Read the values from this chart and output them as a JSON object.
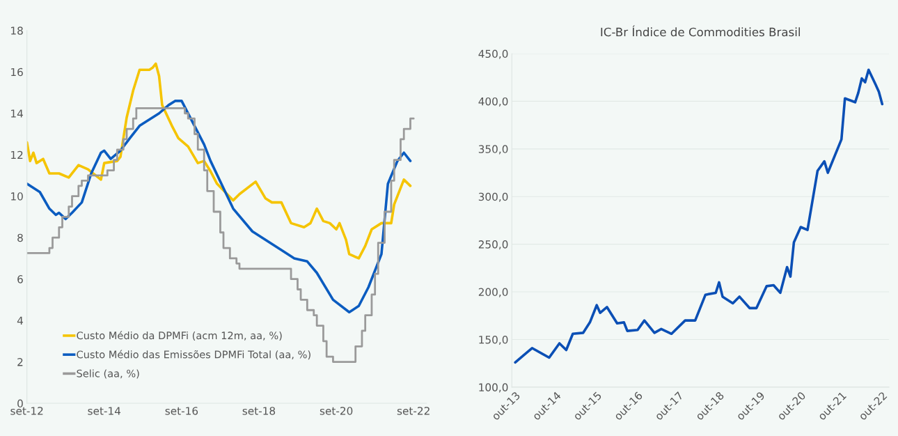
{
  "chart_data": [
    {
      "type": "line",
      "legend": "bottom left",
      "grid": false,
      "ylim": [
        0,
        18
      ],
      "yticks": [
        0,
        2,
        4,
        6,
        8,
        10,
        12,
        14,
        16,
        18
      ],
      "xlim": [
        "2012-09",
        "2023-01"
      ],
      "xticks": [
        {
          "value": "2012-09",
          "label": "set-12"
        },
        {
          "value": "2014-09",
          "label": "set-14"
        },
        {
          "value": "2016-09",
          "label": "set-16"
        },
        {
          "value": "2018-09",
          "label": "set-18"
        },
        {
          "value": "2020-09",
          "label": "set-20"
        },
        {
          "value": "2022-09",
          "label": "set-22"
        }
      ],
      "series": [
        {
          "name": "Custo Médio da DPMFi (acm 12m, aa, %)",
          "color": "#f5c400",
          "x": [
            "2012-09",
            "2012-10",
            "2012-11",
            "2012-12",
            "2013-02",
            "2013-04",
            "2013-07",
            "2013-10",
            "2014-01",
            "2014-04",
            "2014-08",
            "2014-09",
            "2015-01",
            "2015-02",
            "2015-04",
            "2015-06",
            "2015-08",
            "2015-11",
            "2015-12",
            "2016-01",
            "2016-02",
            "2016-03",
            "2016-06",
            "2016-08",
            "2016-11",
            "2017-02",
            "2017-04",
            "2017-06",
            "2017-08",
            "2018-01",
            "2018-03",
            "2018-08",
            "2018-11",
            "2019-01",
            "2019-04",
            "2019-07",
            "2019-11",
            "2020-01",
            "2020-03",
            "2020-05",
            "2020-07",
            "2020-09",
            "2020-10",
            "2020-12",
            "2021-01",
            "2021-04",
            "2021-06",
            "2021-08",
            "2021-11",
            "2022-02",
            "2022-03",
            "2022-06",
            "2022-08"
          ],
          "values": [
            12.6,
            11.7,
            12.1,
            11.6,
            11.8,
            11.1,
            11.1,
            10.9,
            11.5,
            11.3,
            10.8,
            11.6,
            11.7,
            11.9,
            13.8,
            15.1,
            16.1,
            16.1,
            16.2,
            16.4,
            15.8,
            14.4,
            13.4,
            12.8,
            12.4,
            11.6,
            11.7,
            11.2,
            10.6,
            9.8,
            10.1,
            10.7,
            9.9,
            9.7,
            9.7,
            8.7,
            8.5,
            8.7,
            9.4,
            8.8,
            8.7,
            8.4,
            8.7,
            7.9,
            7.2,
            7.0,
            7.6,
            8.4,
            8.7,
            8.7,
            9.6,
            10.8,
            10.5
          ]
        },
        {
          "name": "Custo Médio das Emissões DPMFi Total (aa, %)",
          "color": "#0b5cc0",
          "x": [
            "2012-09",
            "2013-01",
            "2013-04",
            "2013-06",
            "2013-07",
            "2013-09",
            "2013-11",
            "2014-02",
            "2014-05",
            "2014-08",
            "2014-09",
            "2014-11",
            "2015-02",
            "2015-05",
            "2015-08",
            "2016-02",
            "2016-05",
            "2016-07",
            "2016-09",
            "2017-04",
            "2017-06",
            "2018-01",
            "2018-07",
            "2019-04",
            "2019-08",
            "2019-12",
            "2020-03",
            "2020-08",
            "2021-01",
            "2021-04",
            "2021-07",
            "2021-11",
            "2022-01",
            "2022-04",
            "2022-06",
            "2022-08"
          ],
          "values": [
            10.6,
            10.2,
            9.4,
            9.1,
            9.2,
            8.9,
            9.2,
            9.7,
            11.1,
            12.1,
            12.2,
            11.8,
            12.2,
            12.8,
            13.4,
            14.0,
            14.4,
            14.6,
            14.6,
            12.5,
            11.7,
            9.4,
            8.3,
            7.4,
            7.0,
            6.85,
            6.3,
            5.0,
            4.4,
            4.7,
            5.6,
            7.2,
            10.6,
            11.7,
            12.1,
            11.7
          ]
        },
        {
          "name": "Selic (aa, %)",
          "color": "#9a9a9a",
          "type": "step",
          "x": [
            "2012-09",
            "2013-04",
            "2013-05",
            "2013-07",
            "2013-08",
            "2013-10",
            "2013-11",
            "2014-01",
            "2014-02",
            "2014-04",
            "2014-10",
            "2014-12",
            "2015-01",
            "2015-03",
            "2015-04",
            "2015-06",
            "2015-07",
            "2016-10",
            "2016-11",
            "2017-01",
            "2017-02",
            "2017-04",
            "2017-05",
            "2017-07",
            "2017-09",
            "2017-10",
            "2017-12",
            "2018-02",
            "2018-03",
            "2019-07",
            "2019-09",
            "2019-10",
            "2019-12",
            "2020-02",
            "2020-03",
            "2020-05",
            "2020-06",
            "2020-08",
            "2021-03",
            "2021-05",
            "2021-06",
            "2021-08",
            "2021-09",
            "2021-10",
            "2021-12",
            "2022-02",
            "2022-03",
            "2022-05",
            "2022-06",
            "2022-08",
            "2022-09"
          ],
          "values": [
            7.25,
            7.5,
            8.0,
            8.5,
            9.0,
            9.5,
            10.0,
            10.5,
            10.75,
            11.0,
            11.25,
            11.75,
            12.25,
            12.75,
            13.25,
            13.75,
            14.25,
            14.0,
            13.75,
            13.0,
            12.25,
            11.25,
            10.25,
            9.25,
            8.25,
            7.5,
            7.0,
            6.75,
            6.5,
            6.0,
            5.5,
            5.0,
            4.5,
            4.25,
            3.75,
            3.0,
            2.25,
            2.0,
            2.75,
            3.5,
            4.25,
            5.25,
            6.25,
            7.75,
            9.25,
            10.75,
            11.75,
            12.75,
            13.25,
            13.75,
            13.75
          ]
        }
      ]
    },
    {
      "type": "line",
      "title": "IC-Br Índice de Commodities Brasil",
      "grid": "y",
      "ylim": [
        100,
        450
      ],
      "yticks": [
        {
          "value": 100,
          "label": "100,0"
        },
        {
          "value": 150,
          "label": "150,0"
        },
        {
          "value": 200,
          "label": "200,0"
        },
        {
          "value": 250,
          "label": "250,0"
        },
        {
          "value": 300,
          "label": "300,0"
        },
        {
          "value": 350,
          "label": "350,0"
        },
        {
          "value": 400,
          "label": "400,0"
        },
        {
          "value": 450,
          "label": "450,0"
        }
      ],
      "xlim": [
        "2013-09",
        "2022-12"
      ],
      "xticks": [
        {
          "value": "2013-10",
          "label": "out-13"
        },
        {
          "value": "2014-10",
          "label": "out-14"
        },
        {
          "value": "2015-10",
          "label": "out-15"
        },
        {
          "value": "2016-10",
          "label": "out-16"
        },
        {
          "value": "2017-10",
          "label": "out-17"
        },
        {
          "value": "2018-10",
          "label": "out-18"
        },
        {
          "value": "2019-10",
          "label": "out-19"
        },
        {
          "value": "2020-10",
          "label": "out-20"
        },
        {
          "value": "2021-10",
          "label": "out-21"
        },
        {
          "value": "2022-10",
          "label": "out-22"
        }
      ],
      "series": [
        {
          "color": "#0b4fb5",
          "x": [
            "2013-10",
            "2014-03",
            "2014-08",
            "2014-11",
            "2015-01",
            "2015-03",
            "2015-06",
            "2015-08",
            "2015-10",
            "2015-11",
            "2016-01",
            "2016-04",
            "2016-06",
            "2016-07",
            "2016-10",
            "2016-12",
            "2017-03",
            "2017-05",
            "2017-08",
            "2017-12",
            "2018-03",
            "2018-06",
            "2018-09",
            "2018-10",
            "2018-11",
            "2019-02",
            "2019-04",
            "2019-07",
            "2019-09",
            "2019-12",
            "2020-02",
            "2020-04",
            "2020-06",
            "2020-07",
            "2020-08",
            "2020-10",
            "2020-12",
            "2021-03",
            "2021-05",
            "2021-06",
            "2021-10",
            "2021-11",
            "2022-02",
            "2022-03",
            "2022-04",
            "2022-05",
            "2022-06",
            "2022-08",
            "2022-09",
            "2022-10"
          ],
          "values": [
            126,
            141,
            131,
            146,
            139,
            156,
            157,
            168,
            186,
            178,
            184,
            167,
            168,
            159,
            160,
            170,
            157,
            161,
            156,
            170,
            170,
            197,
            199,
            210,
            195,
            188,
            195,
            183,
            183,
            206,
            207,
            199,
            226,
            216,
            252,
            268,
            265,
            327,
            337,
            325,
            360,
            403,
            399,
            409,
            424,
            420,
            433,
            418,
            410,
            397
          ]
        }
      ]
    }
  ]
}
